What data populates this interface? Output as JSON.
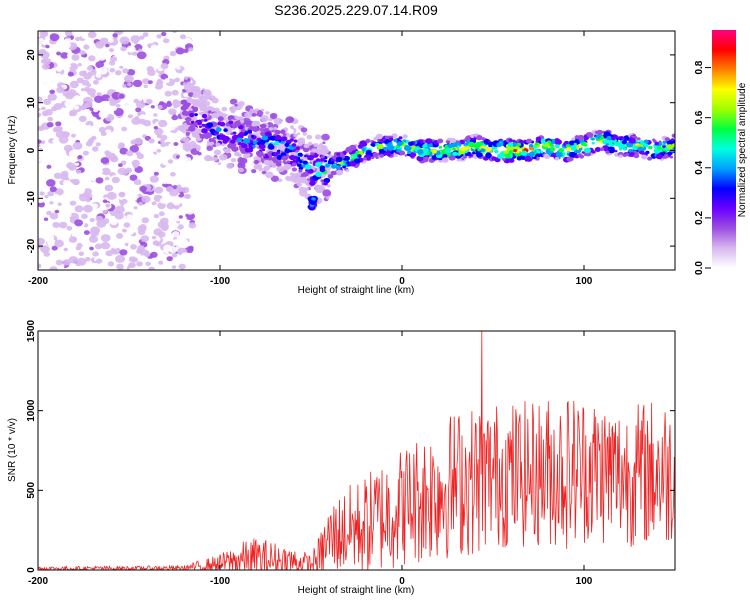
{
  "figure_title": "S236.2025.229.07.14.R09",
  "chart_data": [
    {
      "type": "heatmap",
      "description": "Spectrogram panel",
      "xlabel": "Height of straight line (km)",
      "ylabel": "Frequency (Hz)",
      "xlim": [
        -200,
        150
      ],
      "ylim": [
        -25,
        25
      ],
      "x_ticks": [
        -200,
        -100,
        0,
        100
      ],
      "x_tick_labels": [
        "-200",
        "-100",
        "0",
        "100"
      ],
      "y_ticks": [
        20,
        10,
        0,
        -10,
        -20
      ],
      "y_tick_labels": [
        "20",
        "10",
        "0",
        "-10",
        "-20"
      ],
      "colorbar": {
        "label": "Normalized spectral amplitude",
        "range": [
          0,
          0.95
        ],
        "ticks": [
          0.0,
          0.2,
          0.4,
          0.6,
          0.8
        ],
        "tick_labels": [
          "0.0",
          "0.2",
          "0.4",
          "0.6",
          "0.8"
        ],
        "colors": [
          "#ffffff",
          "#d8b8f0",
          "#9c4ee0",
          "#6a00ff",
          "#0000ff",
          "#00a0ff",
          "#00ffe0",
          "#00ff40",
          "#a0ff00",
          "#ffff00",
          "#ff8000",
          "#ff0000",
          "#ff0080"
        ]
      },
      "ridge": {
        "x": [
          -120,
          -110,
          -100,
          -90,
          -80,
          -70,
          -60,
          -55,
          -50,
          -45,
          -42,
          -38,
          -30,
          -20,
          -10,
          0,
          10,
          20,
          30,
          40,
          50,
          60,
          70,
          80,
          90,
          100,
          110,
          120,
          130,
          140,
          150
        ],
        "freq": [
          8,
          6,
          4,
          3,
          2,
          1,
          0,
          -2,
          -4,
          -4,
          -4,
          -3,
          -2,
          0,
          1,
          1,
          0,
          0,
          0,
          1,
          0,
          0,
          0,
          1,
          0,
          1,
          2,
          1,
          1,
          0,
          1
        ],
        "amplitude": [
          0.3,
          0.35,
          0.4,
          0.45,
          0.45,
          0.5,
          0.45,
          0.5,
          0.5,
          0.55,
          0.55,
          0.55,
          0.6,
          0.6,
          0.6,
          0.65,
          0.7,
          0.7,
          0.7,
          0.7,
          0.75,
          0.95,
          0.8,
          0.75,
          0.8,
          0.7,
          0.7,
          0.7,
          0.65,
          0.65,
          0.6
        ]
      },
      "noise_region_x": [
        -200,
        -115
      ],
      "secondary_blob": {
        "x": [
          -50,
          -48
        ],
        "freq": [
          -12,
          -10
        ]
      }
    },
    {
      "type": "line",
      "description": "SNR trace",
      "xlabel": "Height of straight line (km)",
      "ylabel": "SNR (10 * v/v)",
      "xlim": [
        -200,
        150
      ],
      "ylim": [
        0,
        1500
      ],
      "x_ticks": [
        -200,
        -100,
        0,
        100
      ],
      "x_tick_labels": [
        "-200",
        "-100",
        "0",
        "100"
      ],
      "y_ticks": [
        0,
        500,
        1000,
        1500
      ],
      "y_tick_labels": [
        "0",
        "500",
        "1000",
        "1500"
      ],
      "color": "#ee2222",
      "envelope": {
        "x": [
          -200,
          -120,
          -100,
          -90,
          -80,
          -70,
          -60,
          -50,
          -45,
          -40,
          -30,
          -20,
          -10,
          0,
          10,
          20,
          30,
          40,
          50,
          60,
          70,
          80,
          90,
          100,
          110,
          120,
          130,
          140,
          150
        ],
        "base": [
          10,
          12,
          40,
          60,
          70,
          60,
          50,
          30,
          80,
          200,
          250,
          280,
          350,
          400,
          450,
          500,
          550,
          560,
          600,
          600,
          600,
          620,
          620,
          640,
          620,
          600,
          600,
          620,
          600
        ],
        "amp": [
          12,
          15,
          60,
          110,
          140,
          120,
          100,
          70,
          150,
          220,
          280,
          320,
          370,
          380,
          420,
          450,
          470,
          480,
          460,
          470,
          460,
          480,
          500,
          480,
          470,
          450,
          460,
          480,
          460
        ]
      },
      "max_peak": {
        "x": 44,
        "y": 1500
      }
    }
  ]
}
